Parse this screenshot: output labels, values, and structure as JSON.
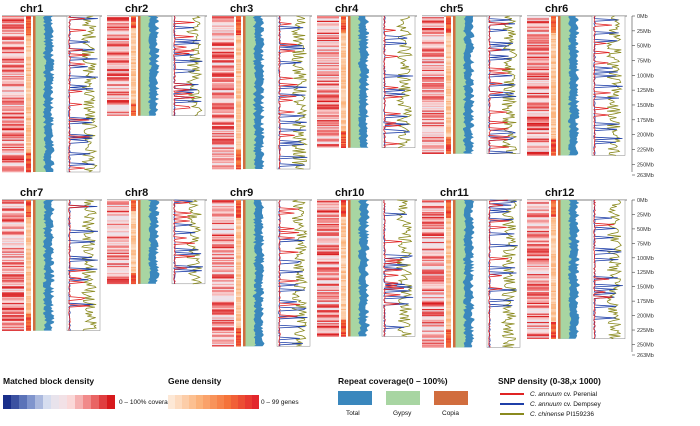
{
  "chart_data": {
    "type": "genome-karyotype",
    "chromosomes": [
      {
        "name": "chr1",
        "length_mb": 263
      },
      {
        "name": "chr2",
        "length_mb": 168
      },
      {
        "name": "chr3",
        "length_mb": 258
      },
      {
        "name": "chr4",
        "length_mb": 222
      },
      {
        "name": "chr5",
        "length_mb": 232
      },
      {
        "name": "chr6",
        "length_mb": 235
      },
      {
        "name": "chr7",
        "length_mb": 226
      },
      {
        "name": "chr8",
        "length_mb": 145
      },
      {
        "name": "chr9",
        "length_mb": 253
      },
      {
        "name": "chr10",
        "length_mb": 236
      },
      {
        "name": "chr11",
        "length_mb": 255
      },
      {
        "name": "chr12",
        "length_mb": 240
      }
    ],
    "scale_ticks_top": [
      "0Mb",
      "25Mb",
      "50Mb",
      "75Mb",
      "100Mb",
      "125Mb",
      "150Mb",
      "175Mb",
      "200Mb",
      "225Mb",
      "250Mb",
      "263Mb"
    ],
    "scale_ticks_bottom": [
      "0Mb",
      "25Mb",
      "50Mb",
      "75Mb",
      "100Mb",
      "125Mb",
      "150Mb",
      "175Mb",
      "200Mb",
      "225Mb",
      "250Mb",
      "263Mb"
    ],
    "tracks": [
      "Matched block density",
      "Gene density",
      "Repeat coverage",
      "SNP density"
    ]
  },
  "legend": {
    "matched": {
      "title": "Matched block density",
      "range": "0 – 100% coverage"
    },
    "gene": {
      "title": "Gene density",
      "range": "0 – 99 genes"
    },
    "repeat": {
      "title": "Repeat coverage(0 – 100%)",
      "items": [
        {
          "label": "Total",
          "color": "#3a87bd"
        },
        {
          "label": "Gypsy",
          "color": "#a8d5a2"
        },
        {
          "label": "Copia",
          "color": "#d16d3e"
        }
      ]
    },
    "snp": {
      "title": "SNP density (0-38,x 1000)",
      "items": [
        {
          "species": "C. annuum",
          "suffix": "cv. Perenial",
          "color": "#e02424"
        },
        {
          "species": "C. annuum",
          "suffix": "cv. Dempsey",
          "color": "#1f3fa8"
        },
        {
          "species": "C. chinense",
          "suffix": "PI159236",
          "color": "#8a8a1f"
        }
      ]
    }
  },
  "colors": {
    "matched_gradient": [
      "#1a2f8a",
      "#6f87c6",
      "#dfe4f2",
      "#fbe0e0",
      "#ef7a7a",
      "#d7191c"
    ],
    "gene_gradient": [
      "#fde8d6",
      "#fbb27a",
      "#f5733a",
      "#e3262c"
    ],
    "repeat_total": "#3a87bd",
    "repeat_gypsy": "#a8d5a2",
    "repeat_copia": "#d16d3e"
  }
}
